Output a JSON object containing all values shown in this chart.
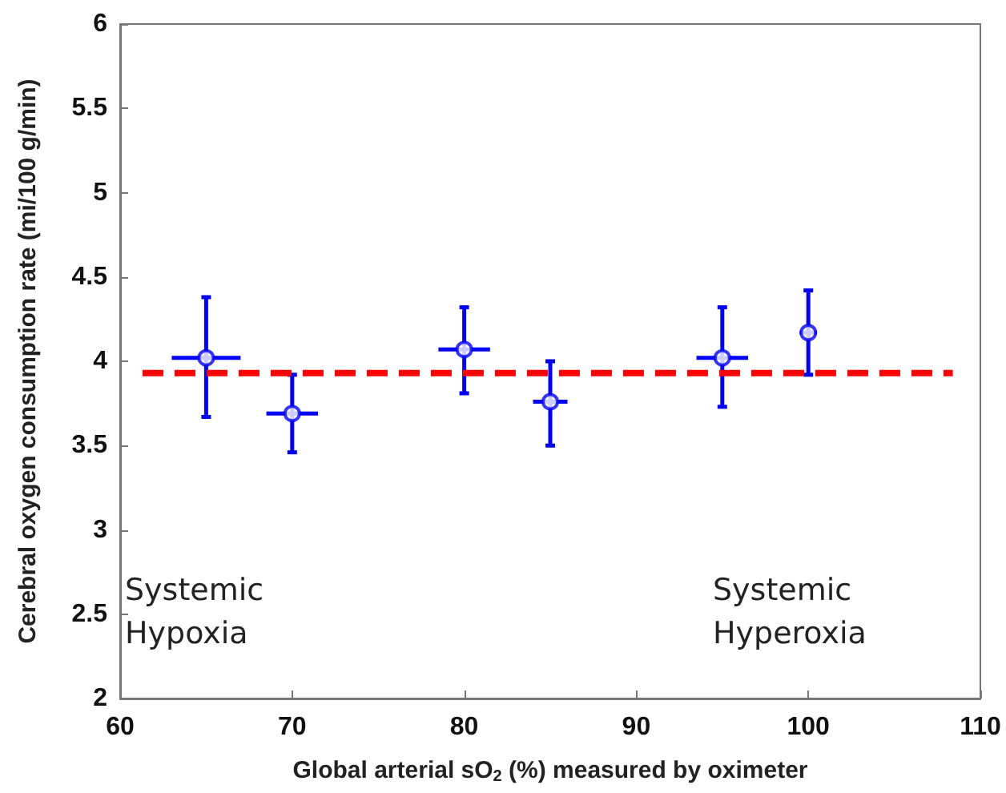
{
  "chart_data": {
    "type": "scatter",
    "xlabel": "Global arterial sO$_{2}$ (%) measured by oximeter",
    "ylabel": "Cerebral oxygen consumption rate (mi/100 g/min)",
    "xlim": [
      60,
      110
    ],
    "xticks": [
      60,
      70,
      80,
      90,
      100,
      110
    ],
    "ylim": [
      2,
      6
    ],
    "yticks": [
      2,
      2.5,
      3,
      3.5,
      4,
      4.5,
      5,
      5.5,
      6
    ],
    "grid": false,
    "marker": "circle",
    "annotations": [
      "Systemic\nHypoxia",
      "Systemic\nHyperoxia"
    ],
    "series": [
      {
        "color": "#0000ff",
        "x": [
          65,
          70,
          80,
          85,
          95,
          100
        ],
        "values": [
          4.02,
          3.69,
          4.07,
          3.76,
          4.02,
          4.17
        ],
        "errors": [
          [
            3.67,
            4.38
          ],
          [
            3.46,
            3.92
          ],
          [
            3.81,
            4.32
          ],
          [
            3.5,
            4.0
          ],
          [
            3.73,
            4.32
          ],
          [
            3.92,
            4.42
          ]
        ],
        "xerrors": [
          2,
          1.5,
          1.5,
          1,
          1.5,
          0.5
        ]
      },
      {
        "type": "line",
        "color": "#ff0000",
        "x": [
          61.3,
          108.4
        ],
        "values": [
          3.93,
          3.93
        ],
        "line_style": "dashed",
        "marker": "none"
      }
    ]
  }
}
